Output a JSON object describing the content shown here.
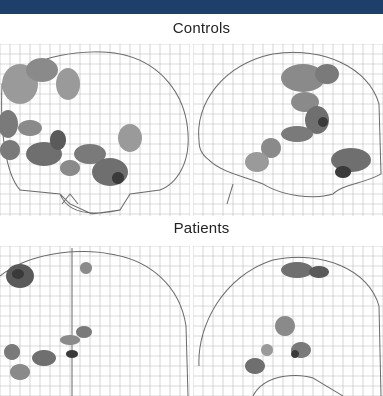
{
  "figure": {
    "groups": [
      {
        "label": "Controls"
      },
      {
        "label": "Patients"
      }
    ],
    "views": [
      "coronal",
      "sagittal"
    ],
    "colors": {
      "header_bar": "#1f3f6b",
      "grid": "#b8b8b8",
      "outline": "#6a6a6a",
      "activation_light": "#9a9a9a",
      "activation_mid": "#6f6f6f",
      "activation_dark": "#3a3a3a"
    }
  }
}
